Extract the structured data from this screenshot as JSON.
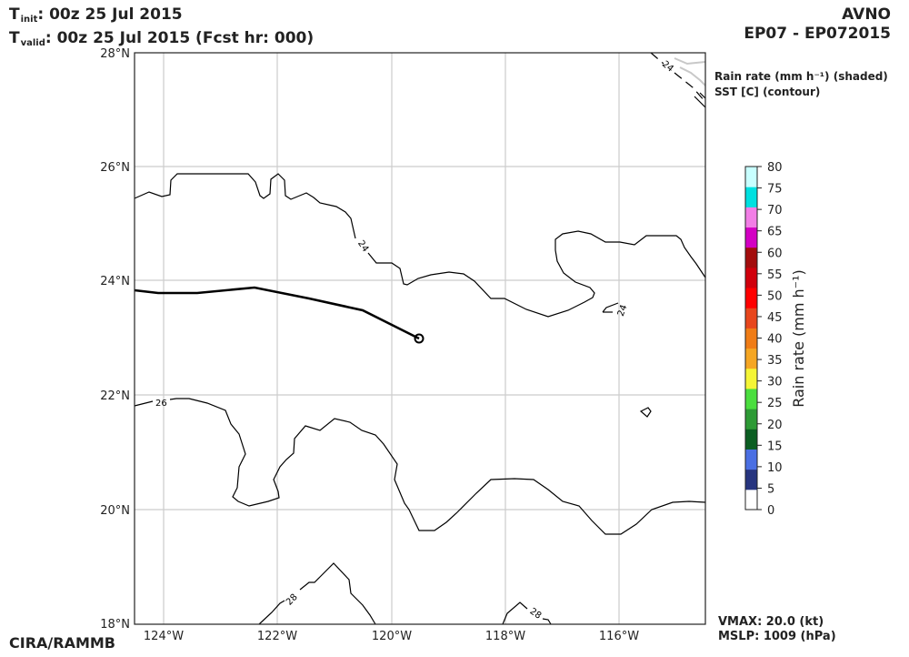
{
  "header": {
    "init_label": "T",
    "init_sub": "init",
    "init_value": ":  00z 25 Jul 2015",
    "valid_label": "T",
    "valid_sub": "valid",
    "valid_value": ": 00z 25 Jul 2015 (Fcst hr: 000)",
    "model": "AVNO",
    "storm": "EP07 - EP072015"
  },
  "legend": {
    "line1": "Rain rate (mm h⁻¹) (shaded)",
    "line2": "SST [C] (contour)"
  },
  "map": {
    "lon_ticks": [
      "124°W",
      "122°W",
      "120°W",
      "118°W",
      "116°W"
    ],
    "lat_ticks": [
      "28°N",
      "26°N",
      "24°N",
      "22°N",
      "20°N",
      "18°N"
    ],
    "contour_labels": [
      "24",
      "24",
      "24",
      "26",
      "28",
      "28"
    ],
    "grid": true
  },
  "colorbar": {
    "label": "Rain rate (mm h⁻¹)",
    "ticks": [
      "80",
      "75",
      "70",
      "65",
      "60",
      "55",
      "50",
      "45",
      "40",
      "35",
      "30",
      "25",
      "20",
      "15",
      "10",
      "5",
      "0"
    ],
    "colors": [
      "#ffffff",
      "#27357f",
      "#4a6fe3",
      "#0b5e22",
      "#2d9a35",
      "#4ade3e",
      "#f5f536",
      "#f5a623",
      "#f07c16",
      "#e8461c",
      "#ff0000",
      "#d0000c",
      "#a30d0d",
      "#d300c3",
      "#f27ee6",
      "#00e0e0",
      "#c8ffff"
    ]
  },
  "footer": {
    "credit": "CIRA/RAMMB",
    "vmax": "VMAX:  20.0 (kt)",
    "mslp": "MSLP: 1009 (hPa)"
  }
}
